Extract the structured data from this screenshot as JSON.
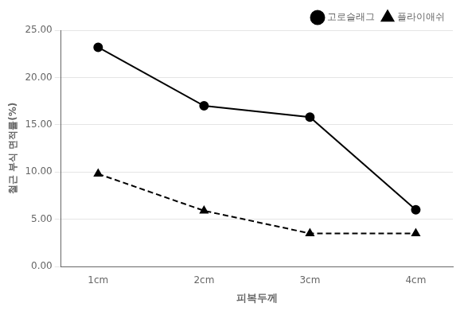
{
  "chart_data": {
    "type": "line",
    "xlabel": "피복두께",
    "ylabel": "철근 부식 면적률(%)",
    "x": [
      1,
      2,
      3,
      4
    ],
    "xlim": [
      0.65,
      4.35
    ],
    "xticks": [
      {
        "value": 1,
        "label": "1cm"
      },
      {
        "value": 2,
        "label": "2cm"
      },
      {
        "value": 3,
        "label": "3cm"
      },
      {
        "value": 4,
        "label": "4cm"
      }
    ],
    "ylim": [
      0.0,
      25.0
    ],
    "yticks": [
      {
        "value": 0.0,
        "label": "0.00"
      },
      {
        "value": 5.0,
        "label": "5.00"
      },
      {
        "value": 10.0,
        "label": "10.00"
      },
      {
        "value": 15.0,
        "label": "15.00"
      },
      {
        "value": 20.0,
        "label": "20.00"
      },
      {
        "value": 25.0,
        "label": "25.00"
      }
    ],
    "grid": "y",
    "legend": "upper right",
    "series": [
      {
        "name": "고로슬래그",
        "color": "#000000",
        "marker": "circle",
        "line_style": "solid",
        "values": [
          23.2,
          17.0,
          15.8,
          6.0
        ]
      },
      {
        "name": "플라이애쉬",
        "color": "#000000",
        "marker": "triangle",
        "line_style": "dashed",
        "values": [
          9.8,
          5.9,
          3.5,
          3.5
        ]
      }
    ]
  }
}
